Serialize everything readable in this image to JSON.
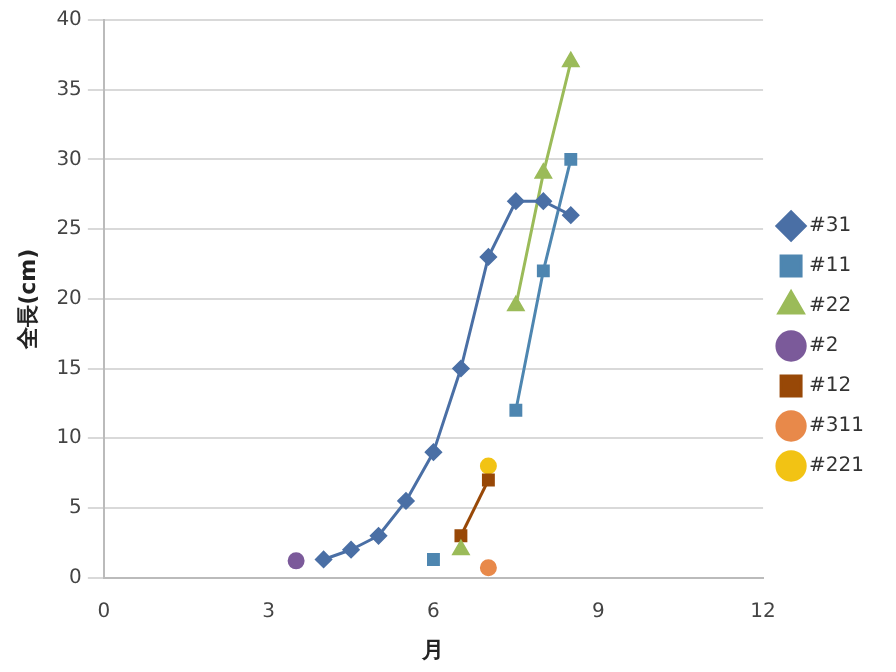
{
  "chart_data": {
    "type": "line",
    "xlabel": "月",
    "ylabel": "全長(cm)",
    "xlim": [
      0,
      12
    ],
    "xticks": [
      0,
      3,
      6,
      9,
      12
    ],
    "ylim": [
      0,
      40
    ],
    "yticks": [
      0,
      5,
      10,
      15,
      20,
      25,
      30,
      35,
      40
    ],
    "grid": "y",
    "legend": "right",
    "series": [
      {
        "name": "#31",
        "color": "#4a6fa5",
        "marker": "diamond",
        "x": [
          4,
          4.5,
          5,
          5.5,
          6,
          6.5,
          7,
          7.5,
          8,
          8.5
        ],
        "values": [
          1.3,
          2,
          3,
          5.5,
          9,
          15,
          23,
          27,
          27,
          26
        ]
      },
      {
        "name": "#11",
        "color": "#4e86b0",
        "marker": "square",
        "x": [
          6,
          7,
          7.5,
          8,
          8.5
        ],
        "values": [
          1.3,
          null,
          12,
          22,
          30
        ]
      },
      {
        "name": "#22",
        "color": "#9bbb59",
        "marker": "triangle",
        "x": [
          6.5,
          7,
          7.5,
          8,
          8.5
        ],
        "values": [
          2,
          null,
          19.5,
          29,
          37
        ]
      },
      {
        "name": "#2",
        "color": "#7b5a9a",
        "marker": "circle",
        "x": [
          3.5
        ],
        "values": [
          1.2
        ]
      },
      {
        "name": "#12",
        "color": "#984807",
        "marker": "square",
        "x": [
          6.5,
          7
        ],
        "values": [
          3,
          7
        ]
      },
      {
        "name": "#311",
        "color": "#e8894a",
        "marker": "circle",
        "x": [
          7
        ],
        "values": [
          0.7
        ]
      },
      {
        "name": "#221",
        "color": "#f2c314",
        "marker": "circle",
        "x": [
          7
        ],
        "values": [
          8
        ]
      }
    ]
  }
}
